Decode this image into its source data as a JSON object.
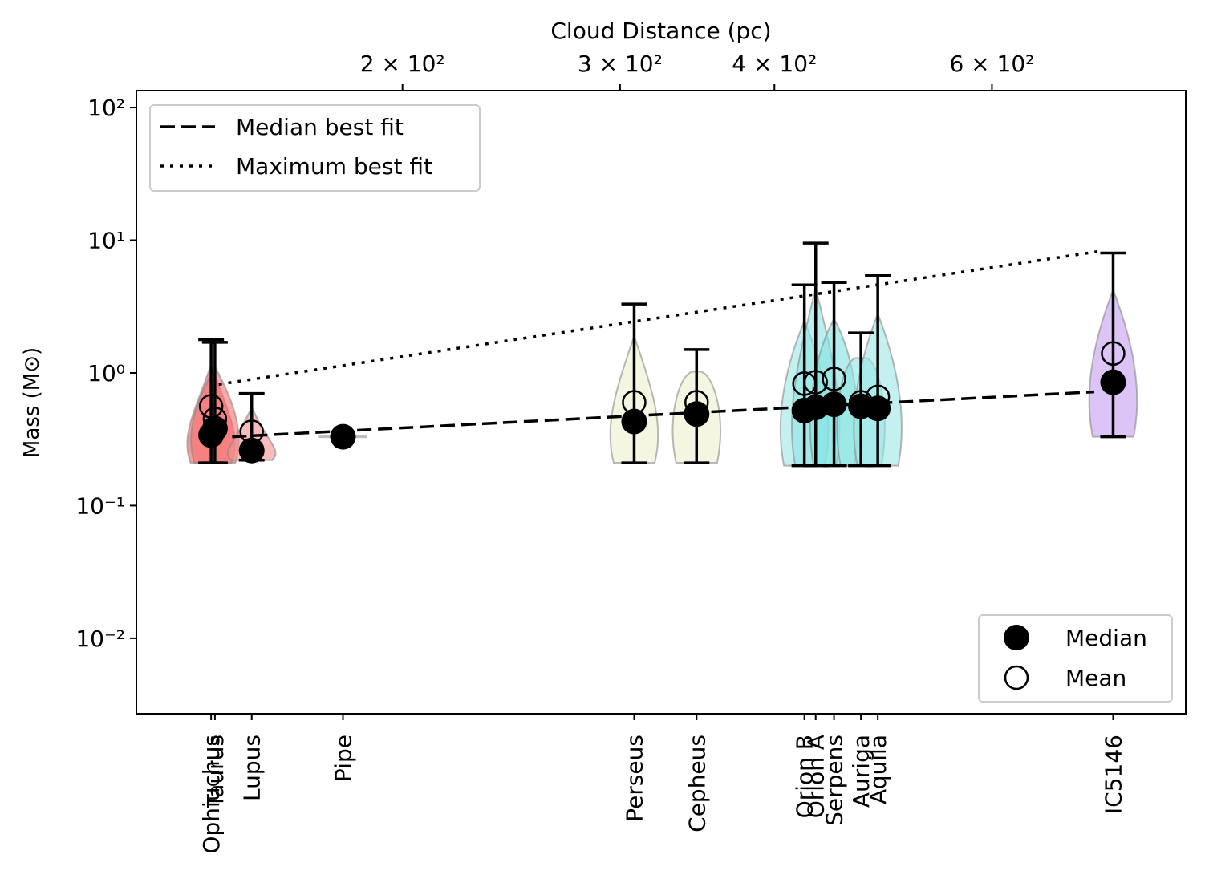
{
  "chart_data": {
    "type": "violin",
    "xlabel": "Cloud Distance (pc)",
    "ylabel": "Mass (M⊙)",
    "xlog": true,
    "ylog": true,
    "xlim": [
      121.8,
      861
    ],
    "ylim": [
      0.0027,
      134
    ],
    "xticks": [
      {
        "value": 200,
        "label": "2 × 10²"
      },
      {
        "value": 300,
        "label": "3 × 10²"
      },
      {
        "value": 400,
        "label": "4 × 10²"
      },
      {
        "value": 600,
        "label": "6 × 10²"
      }
    ],
    "yticks": [
      {
        "value": 0.01,
        "label": "10⁻²"
      },
      {
        "value": 0.1,
        "label": "10⁻¹"
      },
      {
        "value": 1,
        "label": "10⁰"
      },
      {
        "value": 10,
        "label": "10¹"
      },
      {
        "value": 100,
        "label": "10²"
      }
    ],
    "categories": [
      "Ophiuchus",
      "Taurus",
      "Lupus",
      "Pipe",
      "Perseus",
      "Cepheus",
      "Orion B",
      "Orion A",
      "Serpens",
      "Auriga",
      "Aquila",
      "IC5146"
    ],
    "x": [
      140,
      141,
      151,
      179,
      308,
      346,
      423,
      432,
      447,
      470,
      485,
      752
    ],
    "colors": [
      "#f55a5a",
      "#f57070",
      "#f59090",
      "#bbbbbb",
      "#eef0cf",
      "#eef0cf",
      "#9de6e6",
      "#8fe4e4",
      "#80e2e2",
      "#8fe4e4",
      "#9de6e6",
      "#c59cf2"
    ],
    "median": [
      0.34,
      0.38,
      0.26,
      0.33,
      0.43,
      0.49,
      0.52,
      0.55,
      0.58,
      0.56,
      0.54,
      0.85
    ],
    "mean": [
      0.56,
      0.45,
      0.36,
      0.33,
      0.6,
      0.6,
      0.83,
      0.85,
      0.9,
      0.6,
      0.66,
      1.4
    ],
    "min": [
      0.21,
      0.21,
      0.22,
      null,
      0.21,
      0.21,
      0.2,
      0.2,
      0.2,
      0.2,
      0.2,
      0.33
    ],
    "max": [
      1.78,
      1.7,
      0.7,
      null,
      3.3,
      1.5,
      4.6,
      9.5,
      4.8,
      2.0,
      5.4,
      8.0
    ],
    "marker_legend": [
      "Median",
      "Mean"
    ],
    "fits": [
      {
        "name": "Median best fit",
        "style": "dashed",
        "x": [
          145.6,
          726
        ],
        "values": [
          0.33,
          0.72
        ]
      },
      {
        "name": "Maximum best fit",
        "style": "dotted",
        "x": [
          142,
          730
        ],
        "values": [
          0.82,
          8.2
        ]
      }
    ]
  }
}
